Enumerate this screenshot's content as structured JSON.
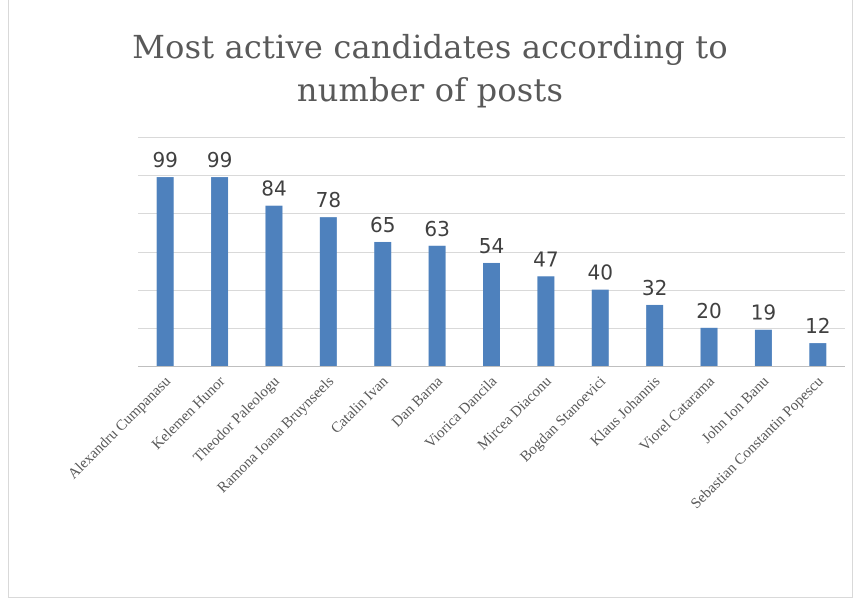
{
  "chart_data": {
    "type": "bar",
    "title": "Most active candidates according to number of posts",
    "xlabel": "",
    "ylabel": "",
    "categories": [
      "Alexandru Cumpanasu",
      "Kelemen Hunor",
      "Theodor Paleologu",
      "Ramona Ioana Bruynseels",
      "Catalin Ivan",
      "Dan Barna",
      "Viorica Dancila",
      "Mircea Diaconu",
      "Bogdan Stanoevici",
      "Klaus Johannis",
      "Viorel Catarama",
      "John Ion Banu",
      "Sebastian Constantin Popescu"
    ],
    "values": [
      99,
      99,
      84,
      78,
      65,
      63,
      54,
      47,
      40,
      32,
      20,
      19,
      12
    ],
    "ylim": [
      0,
      120
    ],
    "grid": true,
    "data_labels": true,
    "bar_color": "#4e81bd",
    "gridline_color": "#d9d9d9",
    "axis_color": "#bfbfbf",
    "text_color": "#595959",
    "label_color": "#404040"
  }
}
